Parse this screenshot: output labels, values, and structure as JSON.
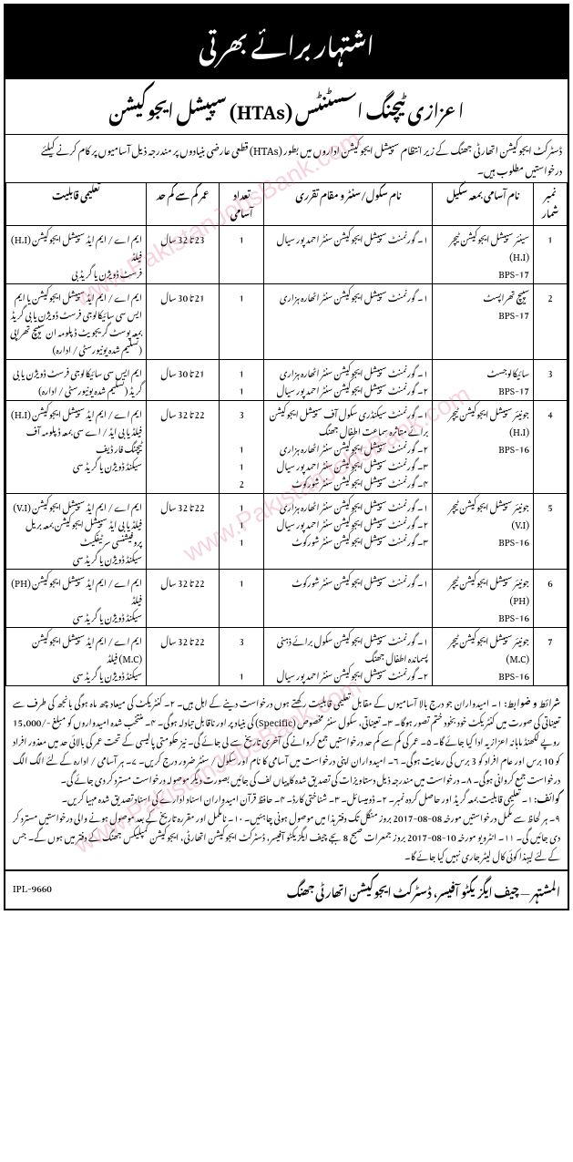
{
  "header": {
    "title": "اشتہار برائے بھرتی",
    "sub": "اعزازی ٹیچنگ اسسٹنٹس (HTAs) سپیشل ایجوکیشن",
    "intro": "ڈسٹرکٹ ایجوکیشن اتھارٹی جھنگ کے زیر انتظام سپیشل ایجوکیشن اداروں میں بطور (HTAs) قطعی عارضی بنیادوں پر مندرجہ ذیل آسامیوں پر کام کرنے کیلئے درخواستیں مطلوب ہیں۔"
  },
  "table": {
    "headers": {
      "sr": "نمبر شمار",
      "post": "نام آسامی بمعہ سکیل",
      "center": "نام سکول/سنٹر و مقام تقرری",
      "count": "تعداد آسامی",
      "age": "عمر کم سے کم حد",
      "qual": "تعلیمی قابلیت"
    },
    "rows": [
      {
        "sr": "1",
        "post": "سینئر سپیشل ایجوکیشن ٹیچر (H.I)\nBPS-17",
        "center": "۱۔ گورنمنٹ سپیشل ایجوکیشن سنٹر احمد پور سیال",
        "count": "1",
        "age": "23 تا 32 سال",
        "qual": "ایم اے / ایم ایڈ سپیشل ایجوکیشن (H.I) فیلڈ\nفرسٹ ڈویژن یا گریڈ بی"
      },
      {
        "sr": "2",
        "post": "سپیچ تھراپسٹ\nBPS-17",
        "center": "۱۔ گورنمنٹ سپیشل ایجوکیشن سنٹر اٹھارہ ہزاری",
        "count": "1",
        "age": "21 تا 30 سال",
        "qual": "ایم اے / ایم ایڈ سپیشل ایجوکیشن یا ایم ایس سی سائیکالوجی فرسٹ ڈویژن یا بی گریڈ بمعہ پوسٹ گریجویٹ ڈپلومہ ان سپیچ تھراپی (تسلیم شدہ یونیورسٹی / ادارہ)"
      },
      {
        "sr": "3",
        "post": "سائیکالوجسٹ\nBPS-17",
        "center": "۱۔ گورنمنٹ سپیشل ایجوکیشن سنٹر اٹھارہ ہزاری\n۲۔ گورنمنٹ سپیشل ایجوکیشن سنٹر احمد پور سیال",
        "count": "1\n1",
        "age": "21 تا 30 سال",
        "qual": "ایم ایس سی سائیکالوجی فرسٹ ڈویژن یا بی گریڈ (تسلیم شدہ یونیورسٹی / ادارہ)"
      },
      {
        "sr": "4",
        "post": "جونیئر سپیشل ایجوکیشن ٹیچر (H.I)\nBPS-16",
        "center": "۱۔ گورنمنٹ سیکنڈری سکول آف سپیشل ایجوکیشن برائے متاثرہ سماعت اطفال جھنگ\n۲۔ گورنمنٹ سپیشل ایجوکیشن سنٹر اٹھارہ ہزاری\n۳۔ گورنمنٹ سپیشل ایجوکیشن سنٹر احمد پور سیال\n۴۔ گورنمنٹ سپیشل ایجوکیشن سنٹر شورکوٹ",
        "count": "3\n\n1\n1\n2",
        "age": "22 تا 32 سال",
        "qual": "ایم اے / ایم ایڈ سپیشل ایجوکیشن (H.I) فیلڈ یا بی ایڈ / اے سی بمعہ ڈپلومہ آف ٹیچنگ فار ڈیف\nسیکنڈ ڈویژن یا گریڈ سی"
      },
      {
        "sr": "5",
        "post": "جونیئر سپیشل ایجوکیشن ٹیچر (V.I)\nBPS-16",
        "center": "۱۔ گورنمنٹ سپیشل ایجوکیشن سنٹر اٹھارہ ہزاری\n۲۔ گورنمنٹ سپیشل ایجوکیشن سنٹر احمد پور سیال\n۳۔ گورنمنٹ سپیشل ایجوکیشن سنٹر شورکوٹ",
        "count": "1\n1\n1",
        "age": "22 تا 32 سال",
        "qual": "ایم اے / ایم ایڈ سپیشل ایجوکیشن (V.I) فیلڈ یا بی ایڈ سپیشل ایجوکیشن بمعہ بریل پروفیشنسی سرٹیفکیٹ\nسیکنڈ ڈویژن یا گریڈ سی"
      },
      {
        "sr": "6",
        "post": "جونیئر سپیشل ایجوکیشن ٹیچر (PH)\nBPS-16",
        "center": "۱۔ گورنمنٹ سپیشل ایجوکیشن سنٹر شورکوٹ",
        "count": "1",
        "age": "22 تا 32 سال",
        "qual": "ایم اے / ایم ایڈ سپیشل ایجوکیشن (PH) فیلڈ\nسیکنڈ ڈویژن یا گریڈ سی"
      },
      {
        "sr": "7",
        "post": "جونیئر سپیشل ایجوکیشن ٹیچر (M.C)\nBPS-16",
        "center": "۱۔ گورنمنٹ سپیشل ایجوکیشن سکول برائے ذہنی پسماندہ اطفال جھنگ\n۲۔ گورنمنٹ سپیشل ایجوکیشن سنٹر احمد پور سیال",
        "count": "3\n\n1",
        "age": "22 تا 32 سال",
        "qual": "ایم اے / ایم ایڈ سپیشل ایجوکیشن (M.C) فیلڈ\nسیکنڈ ڈویژن یا گریڈ سی"
      }
    ]
  },
  "terms": {
    "title": "شرائط و ضوابط:",
    "body": "۱۔ امیدواران جو درج بالا آسامیوں کے مقابل تعلیمی قابلیت رکھتے ہوں درخواست دینے کے اہل ہیں۔ ۲۔ کنٹریکٹ کی میعاد چھ ماہ ہوگی بانجھ کی طرف سے تعیناتی کی صورت میں کنٹریکٹ خود بخود ختم تصور ہوگا۔ ۳۔ تعیناتی، سکول سنٹر مخصوص (Specific) کی بنیاد پر اور ناقابل تبادلہ ہوگی۔ ۴۔ منتخب شدہ امیدواروں کو مبلغ -/15,000 روپے لکھنڈ ماہانہ اعزازیہ ادا کیا جائے گا۔ ۵۔ عمر کی کم سے کم حد درخواستیں جمع کروانے کی آخری تاریخ سے لی جائے گی۔ نیز حکومتی پالیسی کے تحت عمر کی بالائی حد میں معذور افراد کو 10 برس اور عام افراد کو 3 برس کی رعایت ہوگی۔ ۶۔ امیدواران اپنی درخواست میں آسامی کا نام اور سکول / سنٹر ضرور درج کریں۔ ۷۔ ہر آسامی / ادارہ کے لئے الگ الگ درخواست جمع کروانی ہوگی۔ ۸۔ درخواست میں مندرجہ ذیل دستاویزات کی تصدیق شدہ کاپیاں لف کی جائیں بصورت دیگر موصولہ درخواست مسترد کر دی جائے گی۔",
    "docs_title": "کوائف:",
    "docs": "۱۔ تعلیمی قابلیت بمعہ گریڈ اور حاصل کردہ نمبر۔ ۲۔ ڈومیسائل۔ ۳۔ شناختی کارڈ۔ ۴۔ حافظ قرآن امیدواران اسناد ادارے کی اسناد تصدیق شدہ مہیا کریں۔",
    "apply": "۹۔ ہر لحاظ سے مکمل درخواستیں مورخہ 08-08-2017 بروز منگل تک دفتر ہذا میں موصول ہونی چاہئیں۔ ۱۰۔ نامکمل اور مقررہ تاریخ کے بعد موصول ہونے والی درخواستیں مسترد کر دی جائیں گی۔ ۱۱۔ انٹرویو مورخہ 10-08-2017 بروز جمعرات صبح 8 بجے چیف ایگزیکٹو آفیسر، ڈسٹرکٹ ایجوکیشن اتھارٹی، ایجوکیشن کمپلیکس جھنگ کے دفتر میں ہوں گے۔ جس کے لئے لیہذا کوئی کال لیٹر جاری نہیں کیا جائے گا۔"
  },
  "footer": {
    "signatory": "المشتہر — چیف ایگزیکٹو آفیسر، ڈسٹرکٹ ایجوکیشن اتھارٹی جھنگ",
    "ipl": "IPL-9660"
  },
  "watermark": "www.PakistanJobsBank.com"
}
